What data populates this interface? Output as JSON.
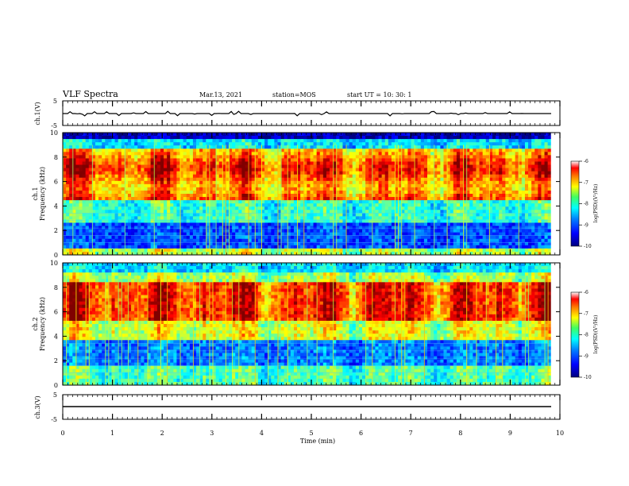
{
  "header": {
    "title": "VLF Spectra",
    "date": "Mar.13, 2021",
    "station": "station=MOS",
    "start": "start UT =  10: 30: 1"
  },
  "chart_data": [
    {
      "type": "line",
      "panel": "ch1-waveform",
      "ylabel": "ch.1(V)",
      "ylim": [
        -5,
        5
      ],
      "y_ticks": [
        "5",
        "-5"
      ],
      "xlim": [
        0,
        10
      ],
      "series": [
        {
          "values_description_level": 0,
          "x": [
            0,
            9.82
          ],
          "y": [
            0,
            0
          ]
        }
      ]
    },
    {
      "type": "heatmap",
      "panel": "ch1-spectrogram",
      "ylabel": "ch.1\nFrequency (kHz)",
      "ylim": [
        0,
        10
      ],
      "y_ticks": [
        "0",
        "2",
        "4",
        "6",
        "8",
        "10"
      ],
      "xlim": [
        0,
        10
      ],
      "data_end_min": 9.82,
      "colorbar": {
        "label": "log(PSD)(V²/Hz)",
        "range": [
          -10,
          -6
        ],
        "ticks": [
          "-6",
          "-7",
          "-8",
          "-9",
          "-10"
        ]
      }
    },
    {
      "type": "heatmap",
      "panel": "ch2-spectrogram",
      "ylabel": "ch.2\nFrequency (kHz)",
      "ylim": [
        0,
        10
      ],
      "y_ticks": [
        "0",
        "2",
        "4",
        "6",
        "8",
        "10"
      ],
      "xlim": [
        0,
        10
      ],
      "data_end_min": 9.82,
      "colorbar": {
        "label": "log(PSD)(V²/Hz)",
        "range": [
          -10,
          -6
        ],
        "ticks": [
          "-6",
          "-7",
          "-8",
          "-9",
          "-10"
        ]
      }
    },
    {
      "type": "line",
      "panel": "ch3-waveform",
      "ylabel": "ch.3(V)",
      "ylim": [
        -5,
        5
      ],
      "y_ticks": [
        "5",
        "-5"
      ],
      "xlim": [
        0,
        10
      ],
      "series": [
        {
          "x": [
            0,
            9.82
          ],
          "y": [
            -1,
            -1
          ]
        }
      ]
    }
  ],
  "xaxis": {
    "label": "Time (min)",
    "ticks": [
      "0",
      "1",
      "2",
      "3",
      "4",
      "5",
      "6",
      "7",
      "8",
      "9",
      "10"
    ]
  },
  "colorbar_label": "log(PSD)(V²/Hz)",
  "colorbar_ticks": [
    "-6",
    "-7",
    "-8",
    "-9",
    "-10"
  ],
  "colors": {
    "jet": [
      "#00007f",
      "#0000ff",
      "#007fff",
      "#00ffff",
      "#7fff7f",
      "#ffff00",
      "#ff7f00",
      "#ff0000",
      "#ffffff"
    ]
  }
}
